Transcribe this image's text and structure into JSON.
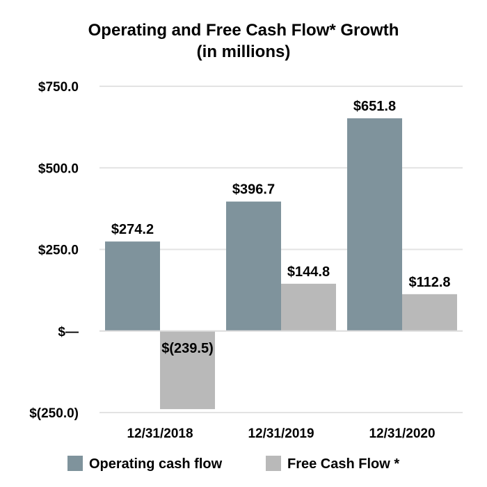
{
  "chart_data": {
    "type": "bar",
    "title": "Operating and Free Cash Flow* Growth",
    "subtitle": "(in millions)",
    "categories": [
      "12/31/2018",
      "12/31/2019",
      "12/31/2020"
    ],
    "series": [
      {
        "name": "Operating cash flow",
        "color": "#7f939c",
        "values": [
          274.2,
          396.7,
          651.8
        ],
        "labels": [
          "$274.2",
          "$396.7",
          "$651.8"
        ]
      },
      {
        "name": "Free Cash Flow *",
        "color": "#b9b9b9",
        "values": [
          -239.5,
          144.8,
          112.8
        ],
        "labels": [
          "$(239.5)",
          "$144.8",
          "$112.8"
        ]
      }
    ],
    "ylim": [
      -250,
      750
    ],
    "yticks": [
      {
        "value": 750,
        "label": "$750.0"
      },
      {
        "value": 500,
        "label": "$500.0"
      },
      {
        "value": 250,
        "label": "$250.0"
      },
      {
        "value": 0,
        "label": "$—"
      },
      {
        "value": -250,
        "label": "$(250.0)"
      }
    ],
    "grid": true,
    "legend": "bottom"
  }
}
